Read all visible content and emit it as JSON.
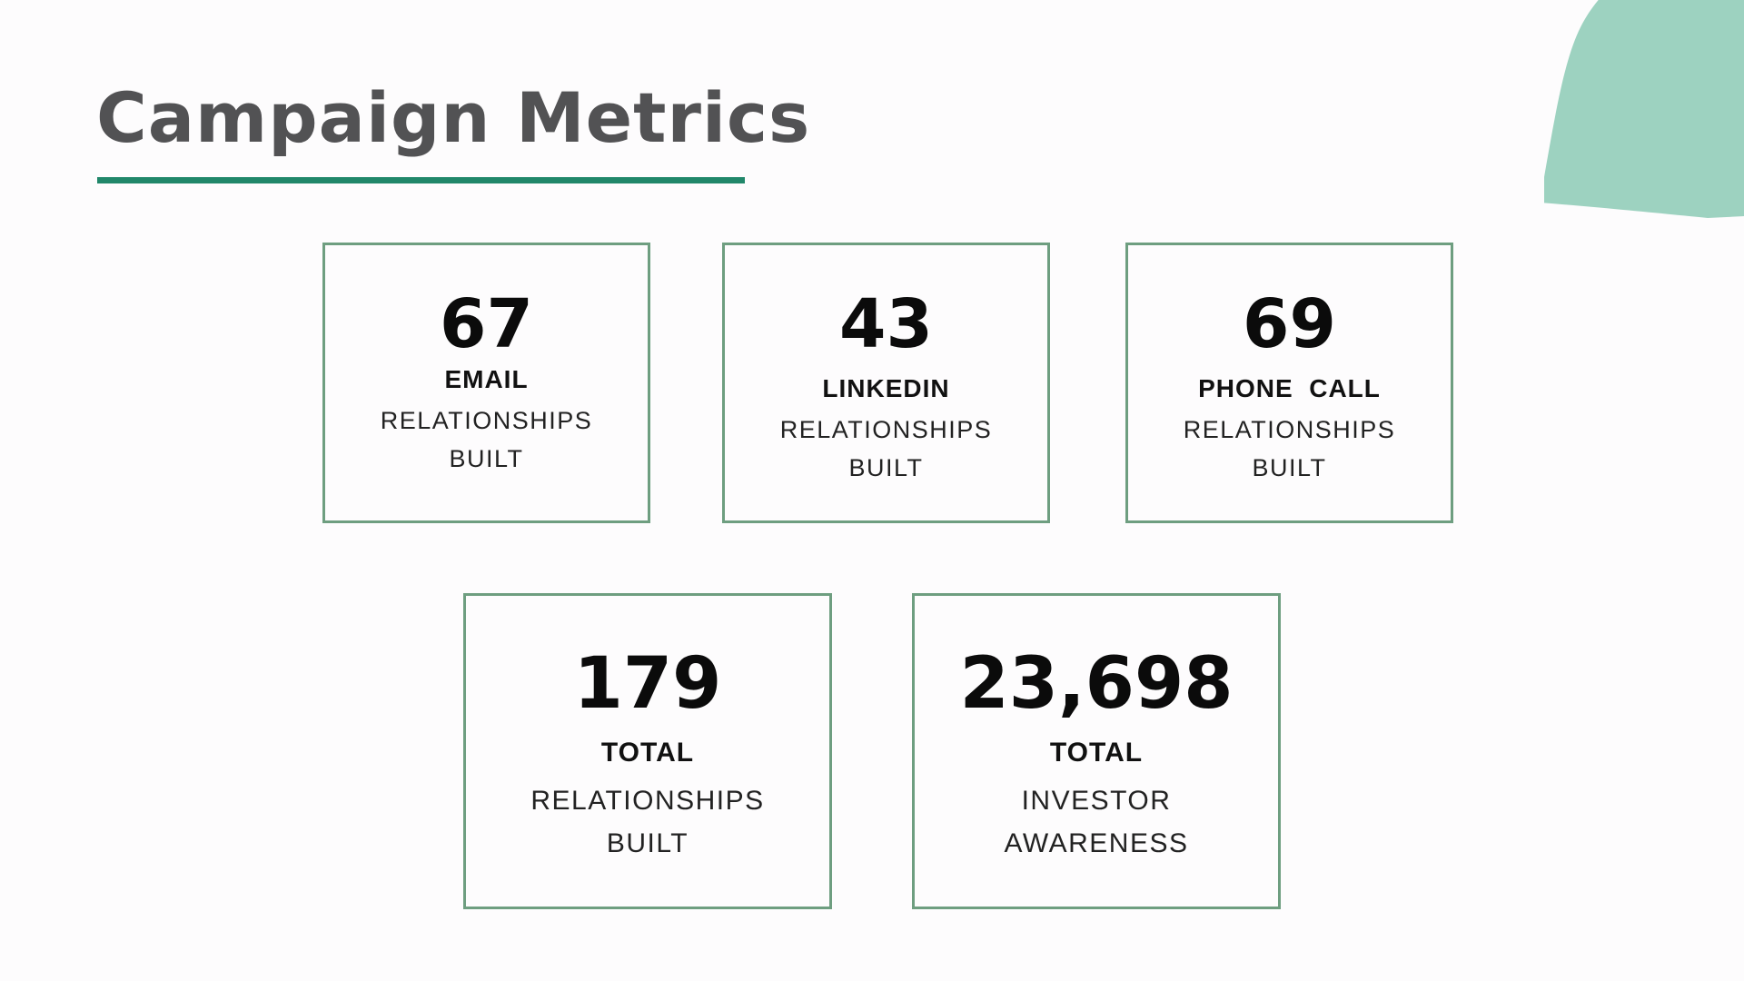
{
  "slide": {
    "title": "Campaign Metrics"
  },
  "colors": {
    "accent": "#21876a",
    "card_border": "#6e9e80",
    "decor_blob": "#9dd2c0",
    "title_text": "#525254"
  },
  "metrics": [
    {
      "value": "67",
      "category": "EMAIL",
      "line1": "RELATIONSHIPS",
      "line2": "BUILT"
    },
    {
      "value": "43",
      "category": "LINKEDIN",
      "line1": "RELATIONSHIPS",
      "line2": "BUILT"
    },
    {
      "value": "69",
      "category": "PHONE  CALL",
      "line1": "RELATIONSHIPS",
      "line2": "BUILT"
    },
    {
      "value": "179",
      "category": "TOTAL",
      "line1": "RELATIONSHIPS",
      "line2": "BUILT"
    },
    {
      "value": "23,698",
      "category": "TOTAL",
      "line1": "INVESTOR",
      "line2": "AWARENESS"
    }
  ]
}
